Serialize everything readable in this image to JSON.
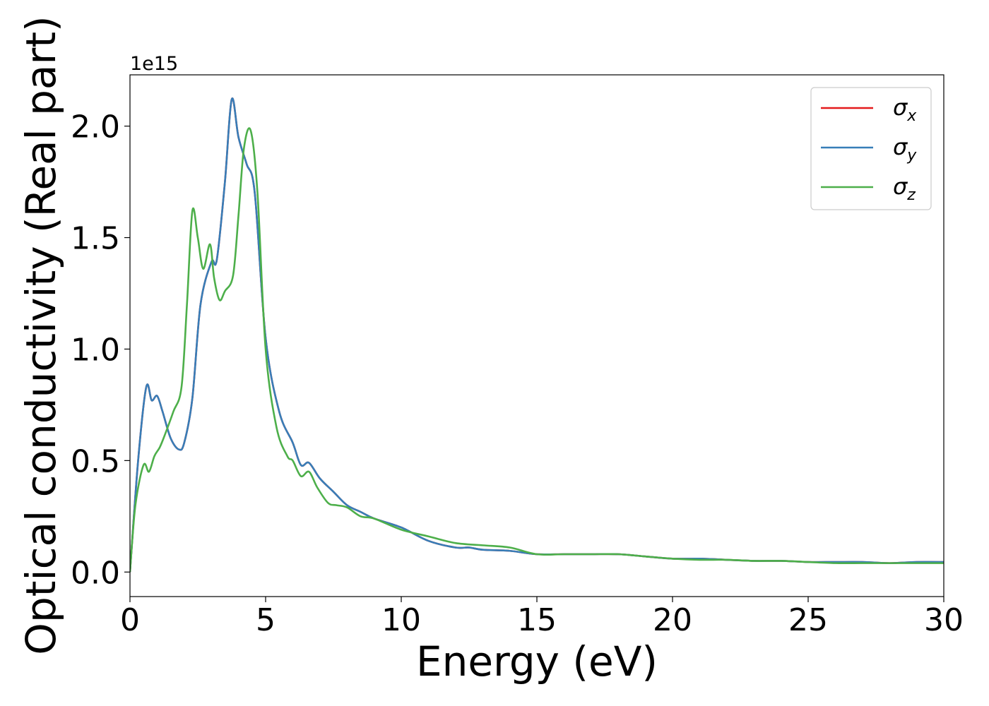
{
  "chart_data": {
    "type": "line",
    "title": "",
    "xlabel": "Energy (eV)",
    "ylabel": "Optical conductivity (Real part)",
    "y_offset_text": "1e15",
    "xlim": [
      0,
      30
    ],
    "ylim": [
      -0.11,
      2.23
    ],
    "y_scale_factor": "1e15",
    "xticks": [
      0,
      5,
      10,
      15,
      20,
      25,
      30
    ],
    "xtick_labels": [
      "0",
      "5",
      "10",
      "15",
      "20",
      "25",
      "30"
    ],
    "yticks": [
      0.0,
      0.5,
      1.0,
      1.5,
      2.0
    ],
    "ytick_labels": [
      "0.0",
      "0.5",
      "1.0",
      "1.5",
      "2.0"
    ],
    "grid": false,
    "legend_position": "top-right",
    "series": [
      {
        "name": "σx",
        "legend_base": "σ",
        "legend_sub": "x",
        "color": "#e41a1c",
        "x": [
          0,
          0.3,
          0.6,
          0.8,
          1.0,
          1.2,
          1.5,
          1.8,
          2.0,
          2.3,
          2.6,
          3.0,
          3.2,
          3.5,
          3.75,
          4.0,
          4.3,
          4.6,
          5.0,
          5.5,
          6.0,
          6.3,
          6.6,
          7.0,
          7.5,
          8.0,
          8.5,
          9.0,
          10.0,
          11.0,
          12.0,
          12.5,
          13.0,
          14.0,
          15.0,
          16.0,
          17.0,
          18.0,
          19.0,
          20.0,
          21.0,
          22.0,
          23.0,
          24.0,
          25.0,
          26.0,
          27.0,
          28.0,
          29.0,
          30.0
        ],
        "y": [
          0.0,
          0.5,
          0.83,
          0.77,
          0.79,
          0.72,
          0.6,
          0.55,
          0.58,
          0.78,
          1.2,
          1.39,
          1.4,
          1.75,
          2.12,
          1.95,
          1.83,
          1.7,
          1.05,
          0.72,
          0.58,
          0.48,
          0.49,
          0.42,
          0.36,
          0.3,
          0.27,
          0.24,
          0.2,
          0.14,
          0.11,
          0.11,
          0.1,
          0.095,
          0.08,
          0.08,
          0.08,
          0.08,
          0.07,
          0.06,
          0.06,
          0.055,
          0.05,
          0.05,
          0.045,
          0.045,
          0.045,
          0.04,
          0.045,
          0.045
        ]
      },
      {
        "name": "σy",
        "legend_base": "σ",
        "legend_sub": "y",
        "color": "#377eb8",
        "x": [
          0,
          0.3,
          0.6,
          0.8,
          1.0,
          1.2,
          1.5,
          1.8,
          2.0,
          2.3,
          2.6,
          3.0,
          3.2,
          3.5,
          3.75,
          4.0,
          4.3,
          4.6,
          5.0,
          5.5,
          6.0,
          6.3,
          6.6,
          7.0,
          7.5,
          8.0,
          8.5,
          9.0,
          10.0,
          11.0,
          12.0,
          12.5,
          13.0,
          14.0,
          15.0,
          16.0,
          17.0,
          18.0,
          19.0,
          20.0,
          21.0,
          22.0,
          23.0,
          24.0,
          25.0,
          26.0,
          27.0,
          28.0,
          29.0,
          30.0
        ],
        "y": [
          0.0,
          0.5,
          0.83,
          0.77,
          0.79,
          0.72,
          0.6,
          0.55,
          0.58,
          0.78,
          1.2,
          1.39,
          1.4,
          1.75,
          2.12,
          1.95,
          1.83,
          1.7,
          1.05,
          0.72,
          0.58,
          0.48,
          0.49,
          0.42,
          0.36,
          0.3,
          0.27,
          0.24,
          0.2,
          0.14,
          0.11,
          0.11,
          0.1,
          0.095,
          0.08,
          0.08,
          0.08,
          0.08,
          0.07,
          0.06,
          0.06,
          0.055,
          0.05,
          0.05,
          0.045,
          0.045,
          0.045,
          0.04,
          0.045,
          0.045
        ]
      },
      {
        "name": "σz",
        "legend_base": "σ",
        "legend_sub": "z",
        "color": "#4daf4a",
        "x": [
          0,
          0.2,
          0.5,
          0.7,
          0.9,
          1.1,
          1.3,
          1.6,
          1.9,
          2.1,
          2.3,
          2.5,
          2.7,
          2.95,
          3.1,
          3.3,
          3.5,
          3.8,
          4.0,
          4.2,
          4.45,
          4.7,
          5.0,
          5.4,
          5.8,
          6.0,
          6.3,
          6.6,
          6.9,
          7.3,
          7.6,
          8.0,
          8.5,
          9.0,
          10.0,
          11.0,
          12.0,
          13.0,
          14.0,
          15.0,
          16.0,
          17.0,
          18.0,
          19.0,
          20.0,
          21.0,
          22.0,
          23.0,
          24.0,
          25.0,
          26.0,
          27.0,
          28.0,
          29.0,
          30.0
        ],
        "y": [
          0.0,
          0.3,
          0.48,
          0.45,
          0.52,
          0.56,
          0.62,
          0.72,
          0.83,
          1.2,
          1.62,
          1.5,
          1.36,
          1.47,
          1.32,
          1.22,
          1.26,
          1.33,
          1.6,
          1.9,
          1.98,
          1.7,
          1.0,
          0.65,
          0.52,
          0.5,
          0.43,
          0.45,
          0.38,
          0.31,
          0.3,
          0.29,
          0.25,
          0.24,
          0.19,
          0.16,
          0.13,
          0.12,
          0.11,
          0.08,
          0.08,
          0.08,
          0.08,
          0.07,
          0.06,
          0.055,
          0.055,
          0.05,
          0.05,
          0.045,
          0.04,
          0.04,
          0.04,
          0.04,
          0.04
        ]
      }
    ]
  }
}
